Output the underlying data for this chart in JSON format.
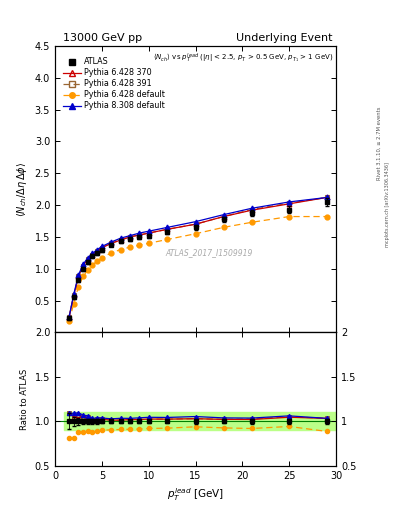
{
  "title_left": "13000 GeV pp",
  "title_right": "Underlying Event",
  "watermark": "ATLAS_2017_I1509919",
  "rivet_label": "Rivet 3.1.10, ≥ 2.7M events",
  "arxiv_label": "mcplots.cern.ch [arXiv:1306.3436]",
  "ylim_main": [
    0.0,
    4.5
  ],
  "ylim_ratio": [
    0.5,
    2.0
  ],
  "xlim": [
    1,
    30
  ],
  "atlas_x": [
    1.5,
    2.0,
    2.5,
    3.0,
    3.5,
    4.0,
    4.5,
    5.0,
    6.0,
    7.0,
    8.0,
    9.0,
    10.0,
    12.0,
    15.0,
    18.0,
    21.0,
    25.0,
    29.0
  ],
  "atlas_y": [
    0.22,
    0.55,
    0.82,
    1.0,
    1.1,
    1.2,
    1.25,
    1.3,
    1.38,
    1.43,
    1.47,
    1.5,
    1.52,
    1.58,
    1.65,
    1.78,
    1.88,
    1.93,
    2.05
  ],
  "atlas_yerr": [
    0.02,
    0.03,
    0.03,
    0.03,
    0.03,
    0.03,
    0.03,
    0.03,
    0.03,
    0.03,
    0.03,
    0.03,
    0.03,
    0.03,
    0.04,
    0.04,
    0.05,
    0.05,
    0.06
  ],
  "p6_370_y": [
    0.24,
    0.58,
    0.88,
    1.05,
    1.15,
    1.22,
    1.28,
    1.33,
    1.4,
    1.45,
    1.5,
    1.53,
    1.56,
    1.62,
    1.7,
    1.82,
    1.92,
    2.02,
    2.12
  ],
  "p6_391_y": [
    0.24,
    0.58,
    0.88,
    1.05,
    1.15,
    1.22,
    1.28,
    1.33,
    1.4,
    1.45,
    1.5,
    1.53,
    1.56,
    1.62,
    1.7,
    1.82,
    1.93,
    2.03,
    2.12
  ],
  "p6_default_y": [
    0.18,
    0.45,
    0.72,
    0.88,
    0.98,
    1.06,
    1.12,
    1.17,
    1.25,
    1.3,
    1.34,
    1.37,
    1.4,
    1.46,
    1.55,
    1.65,
    1.73,
    1.82,
    1.82
  ],
  "p8_default_y": [
    0.24,
    0.6,
    0.9,
    1.07,
    1.17,
    1.24,
    1.3,
    1.35,
    1.42,
    1.48,
    1.52,
    1.56,
    1.59,
    1.65,
    1.74,
    1.85,
    1.95,
    2.05,
    2.12
  ],
  "color_p6_370": "#cc0000",
  "color_p6_391": "#996633",
  "color_p6_default": "#ff9900",
  "color_p8_default": "#0000cc",
  "color_atlas": "#000000",
  "bg_color": "#ffffff",
  "ratio_band_color": "#bbff88",
  "yticks_main": [
    0.5,
    1.0,
    1.5,
    2.0,
    2.5,
    3.0,
    3.5,
    4.0,
    4.5
  ],
  "yticks_ratio": [
    0.5,
    1.0,
    1.5,
    2.0
  ],
  "xticks": [
    0,
    5,
    10,
    15,
    20,
    25,
    30
  ]
}
